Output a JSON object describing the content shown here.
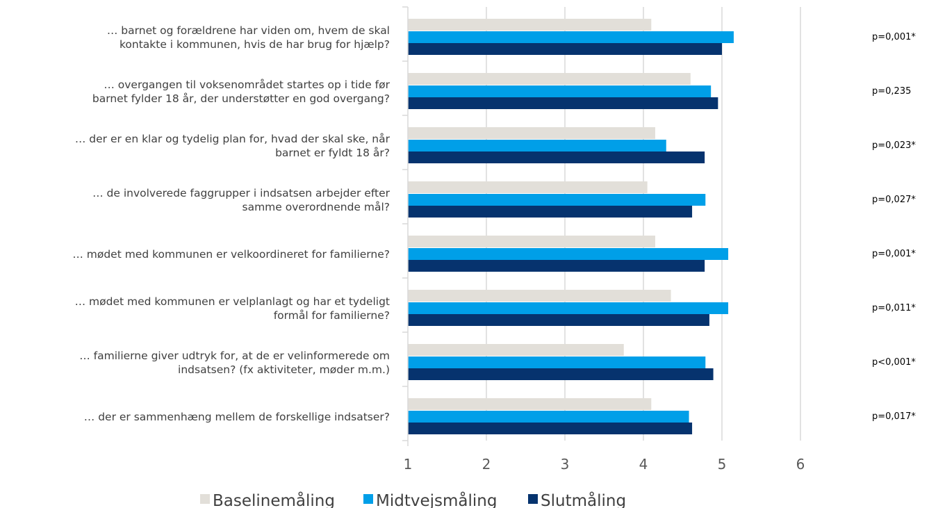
{
  "chart_data": {
    "type": "bar",
    "orientation": "horizontal",
    "categories": [
      [
        "… barnet og forældrene har viden om, hvem de skal",
        "kontakte i kommunen, hvis de har brug for hjælp?"
      ],
      [
        "… overgangen til voksenområdet startes op i tide før",
        "barnet fylder 18 år, der understøtter en god overgang?"
      ],
      [
        "… der er en klar og tydelig plan for, hvad der skal ske, når",
        "barnet er fyldt 18 år?"
      ],
      [
        "… de involverede faggrupper i indsatsen arbejder efter",
        "samme overordnende mål?"
      ],
      [
        "… mødet med kommunen er velkoordineret for familierne?"
      ],
      [
        "… mødet med kommunen er velplanlagt og har et tydeligt",
        "formål for familierne?"
      ],
      [
        "… familierne giver udtryk for, at de er velinformerede om",
        "indsatsen? (fx aktiviteter, møder m.m.)"
      ],
      [
        "… der er sammenhæng mellem de forskellige indsatser?"
      ]
    ],
    "series": [
      {
        "name": "Baselinemåling",
        "color": "#e2dfd9",
        "values": [
          4.1,
          4.6,
          4.15,
          4.05,
          4.15,
          4.35,
          3.75,
          4.1
        ]
      },
      {
        "name": "Midtvejsmåling",
        "color": "#009fe8",
        "values": [
          5.15,
          4.86,
          4.29,
          4.79,
          5.08,
          5.08,
          4.79,
          4.58
        ]
      },
      {
        "name": "Slutmåling",
        "color": "#06336e",
        "values": [
          5.0,
          4.95,
          4.78,
          4.62,
          4.78,
          4.84,
          4.89,
          4.62
        ]
      }
    ],
    "annotations": [
      "p=0,001*",
      "p=0,235",
      "p=0,023*",
      "p=0,027*",
      "p=0,001*",
      "p=0,011*",
      "p<0,001*",
      "p=0,017*"
    ],
    "xticks": [
      "1",
      "2",
      "3",
      "4",
      "5",
      "6"
    ],
    "xlim": [
      1,
      6
    ],
    "grid": true,
    "legend": "bottom",
    "title": "",
    "xlabel": "",
    "ylabel": ""
  }
}
